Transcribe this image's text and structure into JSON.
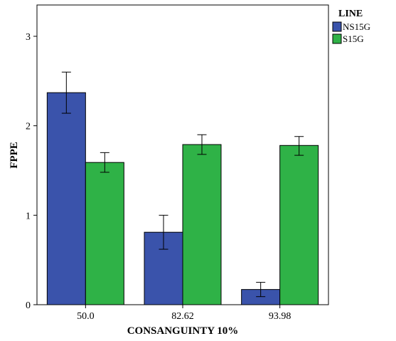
{
  "chart_data": {
    "type": "bar",
    "title": "",
    "xlabel": "CONSANGUINTY 10%",
    "ylabel": "FPPE",
    "categories": [
      "50.0",
      "82.62",
      "93.98"
    ],
    "ylim": [
      0,
      3.35
    ],
    "yticks": [
      "0",
      "1",
      "2",
      "3"
    ],
    "grid": false,
    "legend": {
      "title": "LINE",
      "placement": "right"
    },
    "series": [
      {
        "name": "NS15G",
        "color": "#3a53ab",
        "values": [
          2.37,
          0.81,
          0.17
        ],
        "error_low": [
          2.14,
          0.62,
          0.09
        ],
        "error_high": [
          2.6,
          1.0,
          0.25
        ]
      },
      {
        "name": "S15G",
        "color": "#2fb247",
        "values": [
          1.59,
          1.79,
          1.78
        ],
        "error_low": [
          1.48,
          1.68,
          1.67
        ],
        "error_high": [
          1.7,
          1.9,
          1.88
        ]
      }
    ]
  }
}
